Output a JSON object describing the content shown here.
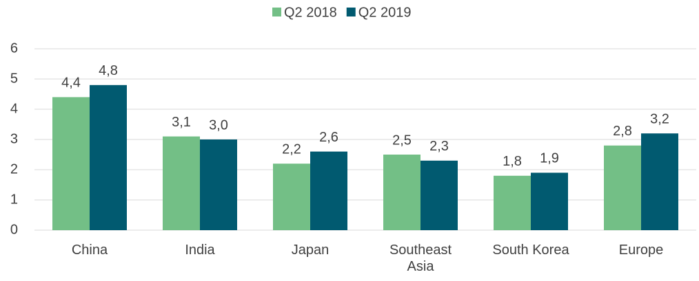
{
  "chart_data": {
    "type": "bar",
    "categories": [
      "China",
      "India",
      "Japan",
      "Southeast Asia",
      "South Korea",
      "Europe"
    ],
    "series": [
      {
        "name": "Q2 2018",
        "color": "#73bf86",
        "values": [
          4.4,
          3.1,
          2.2,
          2.5,
          1.8,
          2.8
        ],
        "value_labels": [
          "4,4",
          "3,1",
          "2,2",
          "2,5",
          "1,8",
          "2,8"
        ]
      },
      {
        "name": "Q2 2019",
        "color": "#015a70",
        "values": [
          4.8,
          3.0,
          2.6,
          2.3,
          1.9,
          3.2
        ],
        "value_labels": [
          "4,8",
          "3,0",
          "2,6",
          "2,3",
          "1,9",
          "3,2"
        ]
      }
    ],
    "ylim": [
      0,
      6
    ],
    "yticks": [
      0,
      1,
      2,
      3,
      4,
      5,
      6
    ],
    "grid": true,
    "legend": "top"
  }
}
